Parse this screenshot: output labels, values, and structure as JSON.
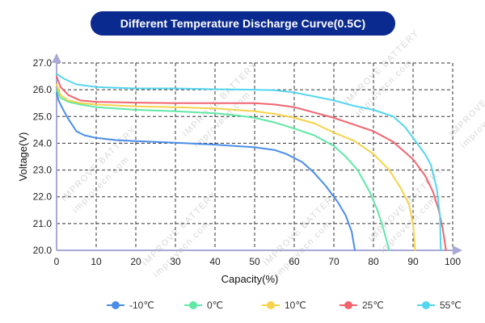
{
  "chart_data": {
    "type": "line",
    "title": "Different Temperature Discharge Curve(0.5C)",
    "xlabel": "Capacity(%)",
    "ylabel": "Voltage(V)",
    "xlim": [
      0,
      100
    ],
    "ylim": [
      20.0,
      27.0
    ],
    "xticks": [
      0,
      10,
      20,
      30,
      40,
      50,
      60,
      70,
      80,
      90,
      100
    ],
    "yticks": [
      "20.0",
      "21.0",
      "22.0",
      "23.0",
      "24.0",
      "25.0",
      "26.0",
      "27.0"
    ],
    "grid": true,
    "legend_position": "bottom",
    "watermark": [
      "IMPROVE BATTERY",
      "improvecn.com"
    ],
    "series": [
      {
        "name": "-10℃",
        "color": "#4a8de8",
        "points": [
          [
            0,
            25.9
          ],
          [
            0.5,
            25.6
          ],
          [
            1.5,
            25.3
          ],
          [
            3,
            24.9
          ],
          [
            5,
            24.45
          ],
          [
            7,
            24.3
          ],
          [
            10,
            24.2
          ],
          [
            15,
            24.12
          ],
          [
            20,
            24.08
          ],
          [
            30,
            24.02
          ],
          [
            40,
            23.95
          ],
          [
            45,
            23.9
          ],
          [
            50,
            23.85
          ],
          [
            55,
            23.75
          ],
          [
            58,
            23.6
          ],
          [
            62,
            23.3
          ],
          [
            65,
            22.9
          ],
          [
            68,
            22.4
          ],
          [
            71,
            21.8
          ],
          [
            73,
            21.3
          ],
          [
            74.5,
            20.7
          ],
          [
            75.3,
            20.0
          ]
        ]
      },
      {
        "name": "0℃",
        "color": "#5fe8a6",
        "points": [
          [
            0,
            26.0
          ],
          [
            1,
            25.7
          ],
          [
            3,
            25.55
          ],
          [
            6,
            25.45
          ],
          [
            10,
            25.35
          ],
          [
            20,
            25.25
          ],
          [
            30,
            25.2
          ],
          [
            40,
            25.12
          ],
          [
            45,
            25.05
          ],
          [
            50,
            24.95
          ],
          [
            55,
            24.78
          ],
          [
            60,
            24.55
          ],
          [
            65,
            24.3
          ],
          [
            70,
            23.9
          ],
          [
            73,
            23.5
          ],
          [
            76,
            23.0
          ],
          [
            79,
            22.2
          ],
          [
            81,
            21.5
          ],
          [
            82.5,
            20.8
          ],
          [
            84,
            20.0
          ]
        ]
      },
      {
        "name": "10℃",
        "color": "#f7d24a",
        "points": [
          [
            0,
            26.2
          ],
          [
            1,
            25.8
          ],
          [
            3,
            25.6
          ],
          [
            6,
            25.5
          ],
          [
            10,
            25.45
          ],
          [
            20,
            25.38
          ],
          [
            30,
            25.35
          ],
          [
            40,
            25.3
          ],
          [
            50,
            25.2
          ],
          [
            55,
            25.1
          ],
          [
            60,
            24.95
          ],
          [
            65,
            24.75
          ],
          [
            70,
            24.4
          ],
          [
            75,
            24.1
          ],
          [
            80,
            23.6
          ],
          [
            84,
            23.0
          ],
          [
            87,
            22.3
          ],
          [
            89,
            21.7
          ],
          [
            90,
            21.0
          ],
          [
            90.5,
            20.0
          ]
        ]
      },
      {
        "name": "25℃",
        "color": "#f2646e",
        "points": [
          [
            0,
            26.5
          ],
          [
            1,
            26.1
          ],
          [
            3,
            25.8
          ],
          [
            6,
            25.6
          ],
          [
            10,
            25.55
          ],
          [
            20,
            25.52
          ],
          [
            30,
            25.5
          ],
          [
            40,
            25.5
          ],
          [
            50,
            25.5
          ],
          [
            55,
            25.45
          ],
          [
            60,
            25.35
          ],
          [
            65,
            25.15
          ],
          [
            70,
            24.95
          ],
          [
            75,
            24.7
          ],
          [
            80,
            24.45
          ],
          [
            85,
            24.05
          ],
          [
            90,
            23.4
          ],
          [
            93,
            22.8
          ],
          [
            95,
            22.2
          ],
          [
            96.5,
            21.5
          ],
          [
            97.5,
            20.8
          ],
          [
            98.3,
            20.0
          ]
        ]
      },
      {
        "name": "55℃",
        "color": "#55d6f0",
        "points": [
          [
            0,
            26.6
          ],
          [
            2,
            26.4
          ],
          [
            5,
            26.2
          ],
          [
            10,
            26.1
          ],
          [
            20,
            26.05
          ],
          [
            30,
            26.05
          ],
          [
            40,
            26.02
          ],
          [
            50,
            26.0
          ],
          [
            55,
            25.98
          ],
          [
            60,
            25.9
          ],
          [
            65,
            25.75
          ],
          [
            70,
            25.6
          ],
          [
            75,
            25.4
          ],
          [
            80,
            25.25
          ],
          [
            85,
            25.0
          ],
          [
            88,
            24.6
          ],
          [
            91,
            24.0
          ],
          [
            93,
            23.6
          ],
          [
            94.5,
            23.2
          ],
          [
            96,
            22.3
          ],
          [
            96.8,
            21.3
          ],
          [
            97,
            20.0
          ]
        ]
      }
    ]
  }
}
